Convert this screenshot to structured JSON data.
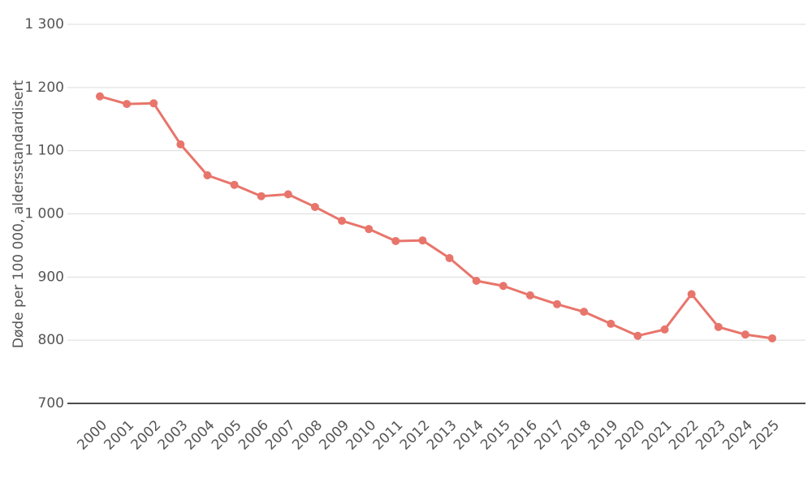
{
  "chart_data": {
    "type": "line",
    "y_label": "Døde per 100 000, aldersstandardisert",
    "categories": [
      "2000",
      "2001",
      "2002",
      "2003",
      "2004",
      "2005",
      "2006",
      "2007",
      "2008",
      "2009",
      "2010",
      "2011",
      "2012",
      "2013",
      "2014",
      "2015",
      "2016",
      "2017",
      "2018",
      "2019",
      "2020",
      "2021",
      "2022",
      "2023",
      "2024",
      "2025"
    ],
    "values": [
      1186,
      1174,
      1175,
      1110,
      1061,
      1046,
      1028,
      1031,
      1011,
      989,
      976,
      957,
      958,
      930,
      894,
      886,
      871,
      857,
      845,
      826,
      807,
      817,
      873,
      821,
      809,
      803
    ],
    "color": "#e8756b",
    "ylim": [
      700,
      1300
    ],
    "yticks": [
      700,
      800,
      900,
      {
        "value": 1000,
        "label": "1 000"
      },
      {
        "value": 1100,
        "label": "1 100"
      },
      {
        "value": 1200,
        "label": "1 200"
      },
      {
        "value": 1300,
        "label": "1 300"
      }
    ],
    "grid": true
  }
}
